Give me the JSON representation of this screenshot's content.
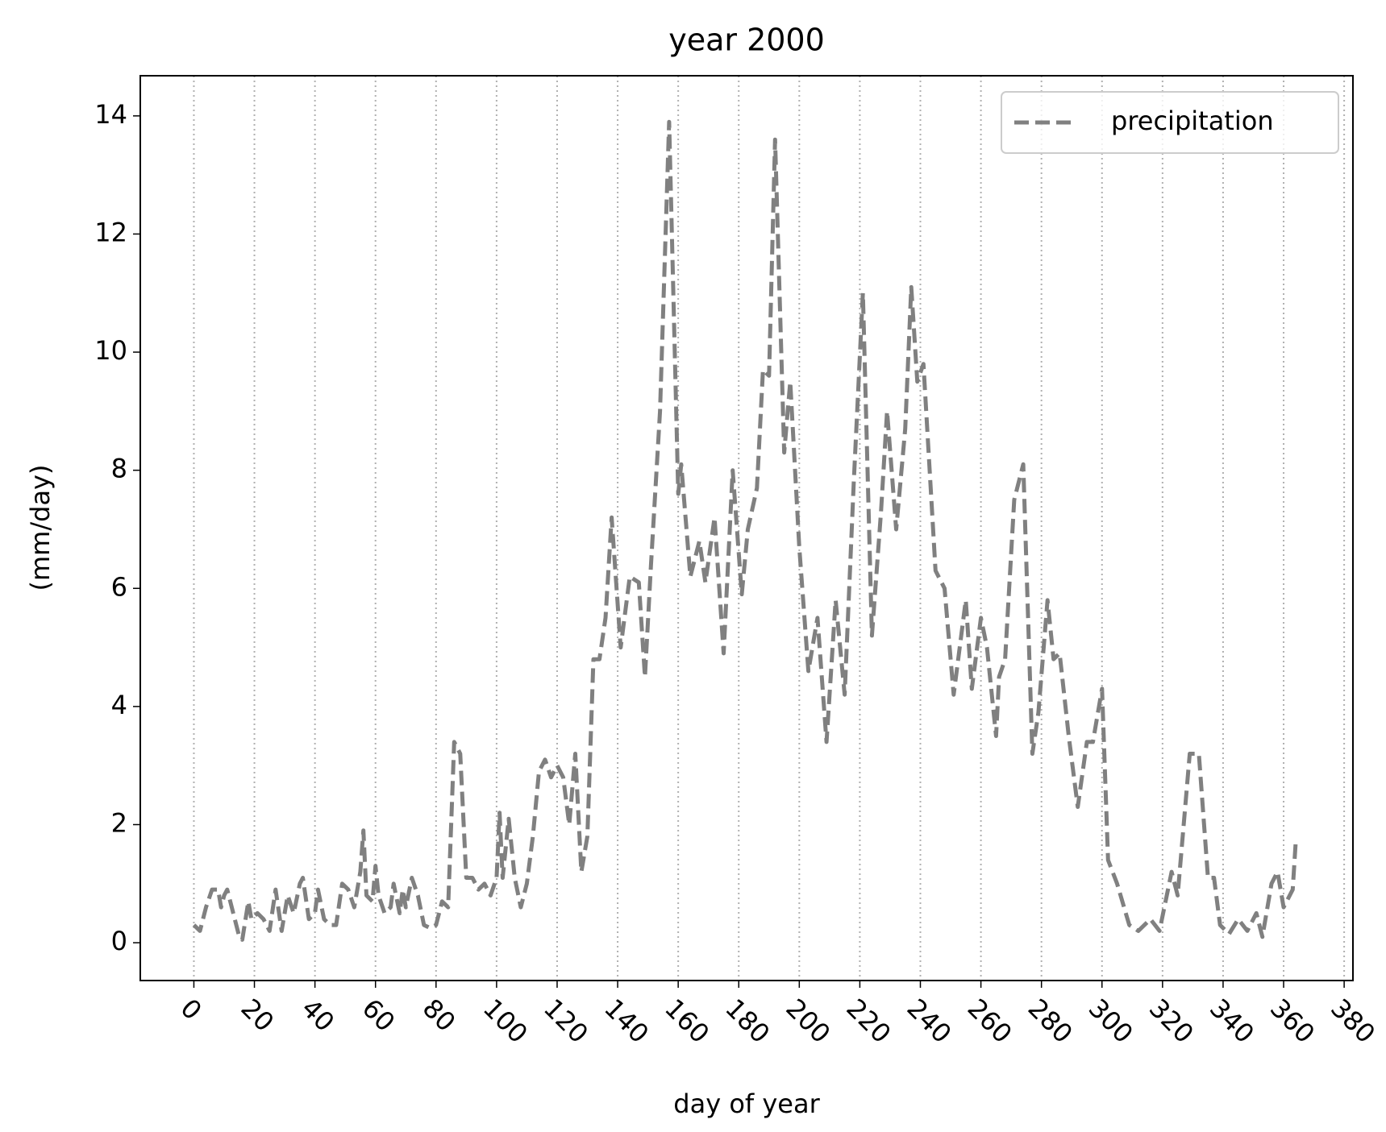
{
  "chart_data": {
    "type": "line",
    "title": "year 2000",
    "x_label": "day of year",
    "y_label": "(mm/day)",
    "x": [
      0,
      2,
      4,
      6,
      8,
      9,
      10,
      11,
      13,
      15,
      16,
      18,
      19,
      21,
      23,
      25,
      27,
      29,
      31,
      33,
      35,
      36,
      38,
      40,
      41,
      43,
      45,
      47,
      49,
      51,
      53,
      55,
      56,
      57,
      59,
      60,
      61,
      63,
      65,
      66,
      68,
      69,
      70,
      72,
      74,
      76,
      78,
      80,
      82,
      84,
      86,
      88,
      90,
      92,
      94,
      96,
      98,
      100,
      101,
      102,
      104,
      106,
      108,
      110,
      112,
      114,
      116,
      118,
      120,
      122,
      124,
      126,
      128,
      130,
      132,
      134,
      136,
      138,
      141,
      144,
      147,
      149,
      151,
      154,
      157,
      160,
      161,
      164,
      167,
      169,
      172,
      175,
      178,
      181,
      183,
      186,
      188,
      190,
      192,
      195,
      197,
      200,
      203,
      206,
      209,
      212,
      215,
      218,
      221,
      224,
      227,
      229,
      232,
      235,
      237,
      239,
      241,
      245,
      248,
      251,
      255,
      257,
      260,
      262,
      265,
      266,
      268,
      271,
      274,
      277,
      279,
      282,
      284,
      286,
      289,
      292,
      295,
      297,
      300,
      302,
      305,
      309,
      312,
      316,
      319,
      323,
      325,
      329,
      332,
      335,
      337,
      339,
      342,
      345,
      348,
      351,
      353,
      356,
      358,
      360,
      363,
      364
    ],
    "series": [
      {
        "name": "precipitation",
        "color": "#808080",
        "values": [
          0.3,
          0.2,
          0.6,
          0.9,
          0.9,
          0.6,
          0.8,
          0.9,
          0.5,
          0.1,
          0.05,
          0.7,
          0.4,
          0.5,
          0.4,
          0.2,
          0.9,
          0.2,
          0.8,
          0.5,
          1.0,
          1.1,
          0.4,
          0.5,
          0.9,
          0.4,
          0.3,
          0.3,
          1.0,
          0.9,
          0.6,
          1.2,
          1.9,
          0.8,
          0.7,
          1.3,
          0.8,
          0.5,
          0.6,
          1.0,
          0.5,
          0.9,
          0.6,
          1.1,
          0.8,
          0.3,
          0.25,
          0.3,
          0.7,
          0.6,
          3.4,
          3.2,
          1.1,
          1.1,
          0.9,
          1.0,
          0.8,
          1.1,
          2.2,
          1.1,
          2.1,
          1.1,
          0.6,
          1.0,
          1.8,
          2.9,
          3.1,
          2.8,
          3.0,
          2.8,
          2.0,
          3.2,
          1.2,
          1.8,
          4.8,
          4.8,
          5.5,
          7.2,
          5.0,
          6.2,
          6.1,
          4.5,
          6.4,
          9.0,
          13.9,
          7.6,
          8.1,
          6.2,
          6.8,
          6.1,
          7.2,
          4.9,
          8.0,
          5.9,
          7.0,
          7.7,
          9.7,
          9.6,
          13.6,
          8.3,
          9.5,
          6.7,
          4.6,
          5.5,
          3.4,
          5.8,
          4.2,
          7.8,
          11.0,
          5.2,
          7.3,
          9.0,
          7.0,
          8.7,
          11.1,
          9.5,
          9.8,
          6.3,
          6.0,
          4.2,
          5.8,
          4.3,
          5.5,
          5.0,
          3.5,
          4.5,
          4.8,
          7.5,
          8.1,
          3.2,
          3.9,
          5.8,
          4.8,
          4.9,
          3.5,
          2.3,
          3.4,
          3.4,
          4.3,
          1.4,
          1.0,
          0.3,
          0.2,
          0.4,
          0.2,
          1.2,
          0.8,
          3.2,
          3.2,
          1.1,
          1.1,
          0.3,
          0.15,
          0.4,
          0.2,
          0.5,
          0.1,
          1.0,
          1.2,
          0.6,
          0.9,
          1.7
        ]
      }
    ],
    "xlim": [
      -17.7,
      382.9
    ],
    "ylim": [
      -0.64,
      14.68
    ],
    "xticks": [
      0,
      20,
      40,
      60,
      80,
      100,
      120,
      140,
      160,
      180,
      200,
      220,
      240,
      260,
      280,
      300,
      320,
      340,
      360,
      380
    ],
    "yticks": [
      0,
      2,
      4,
      6,
      8,
      10,
      12,
      14
    ],
    "grid": "x",
    "legend": "upper right"
  }
}
